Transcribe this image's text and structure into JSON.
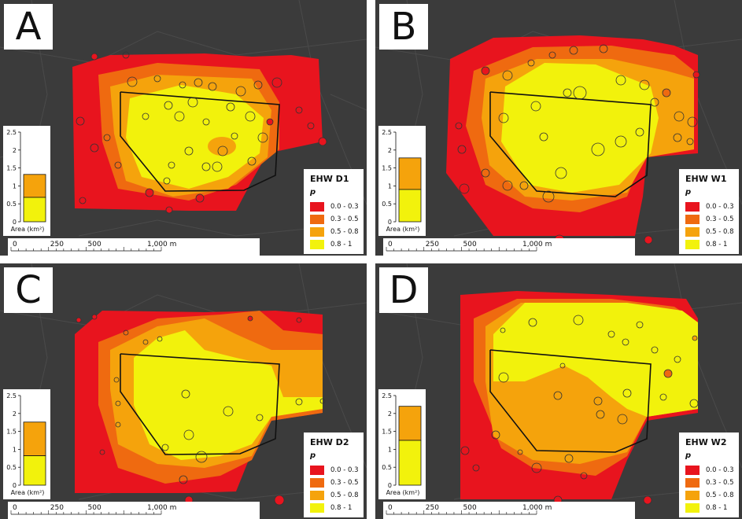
{
  "colors": {
    "c0": "#e8141e",
    "c1": "#ef6a10",
    "c2": "#f5a30c",
    "c3": "#f2f20c",
    "background": "#3b3b3b"
  },
  "legend_header": "p",
  "legend_classes": [
    "0.0 - 0.3",
    "0.3 - 0.5",
    "0.5 - 0.8",
    "0.8 - 1"
  ],
  "bar_chart_ticks": [
    "2.5",
    "2",
    "1.5",
    "1",
    "0.5",
    "0"
  ],
  "bar_chart_label": "Area (km²)",
  "scale_ticks": [
    "0",
    "250",
    "500",
    "1,000 m"
  ],
  "panels": [
    {
      "letter": "A",
      "title": "EHW D1",
      "bar": {
        "yellow": 0.68,
        "orange": 1.32
      }
    },
    {
      "letter": "B",
      "title": "EHW W1",
      "bar": {
        "yellow": 0.9,
        "orange": 1.78
      }
    },
    {
      "letter": "C",
      "title": "EHW D2",
      "bar": {
        "yellow": 0.82,
        "orange": 1.76
      }
    },
    {
      "letter": "D",
      "title": "EHW W2",
      "bar": {
        "yellow": 1.25,
        "orange": 2.2
      }
    }
  ]
}
